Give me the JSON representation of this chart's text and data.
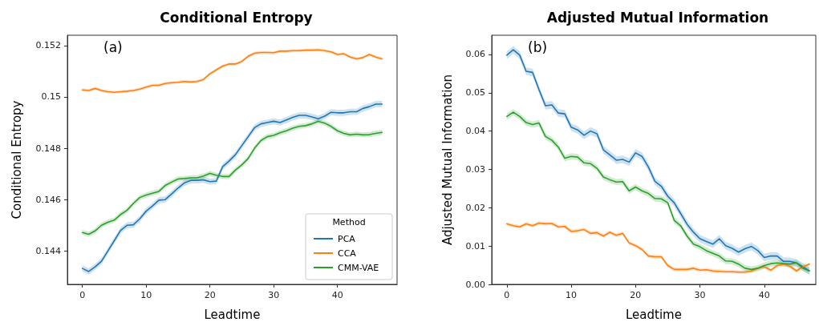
{
  "chart_data": [
    {
      "type": "line",
      "title": "Conditional Entropy",
      "xlabel": "Leadtime",
      "ylabel": "Conditional Entropy",
      "annotations": [
        "(a)"
      ],
      "x": [
        0,
        1,
        2,
        3,
        4,
        5,
        6,
        7,
        8,
        9,
        10,
        11,
        12,
        13,
        14,
        15,
        16,
        17,
        18,
        19,
        20,
        21,
        22,
        23,
        24,
        25,
        26,
        27,
        28,
        29,
        30,
        31,
        32,
        33,
        34,
        35,
        36,
        37,
        38,
        39,
        40,
        41,
        42,
        43,
        44,
        45,
        46,
        47
      ],
      "xlim": [
        -2.35,
        49.35
      ],
      "xticks": [
        0,
        10,
        20,
        30,
        40
      ],
      "ylim": [
        0.1427,
        0.1524
      ],
      "yticks": [
        0.144,
        0.146,
        0.148,
        0.15,
        0.152
      ],
      "legend": "bottom right",
      "legend_title": "Method",
      "series": [
        {
          "name": "PCA",
          "color": "#1f77b4",
          "values": [
            0.14332,
            0.1432,
            0.14338,
            0.1436,
            0.144,
            0.1444,
            0.1448,
            0.145,
            0.14502,
            0.14525,
            0.14555,
            0.14575,
            0.14598,
            0.146,
            0.14622,
            0.14645,
            0.14665,
            0.14675,
            0.14675,
            0.14677,
            0.1467,
            0.14672,
            0.14728,
            0.1475,
            0.14775,
            0.1481,
            0.14845,
            0.1488,
            0.14895,
            0.149,
            0.14905,
            0.149,
            0.1491,
            0.1492,
            0.14928,
            0.14928,
            0.14922,
            0.14915,
            0.14925,
            0.1494,
            0.14938,
            0.14938,
            0.14942,
            0.14942,
            0.14955,
            0.14962,
            0.14972,
            0.14972
          ],
          "lower": [
            0.1432,
            0.14308,
            0.14326,
            0.14348,
            0.14388,
            0.14428,
            0.14468,
            0.14488,
            0.1449,
            0.14513,
            0.14543,
            0.14563,
            0.14586,
            0.14588,
            0.1461,
            0.14633,
            0.14653,
            0.14663,
            0.14663,
            0.14665,
            0.14658,
            0.1466,
            0.14716,
            0.14738,
            0.14763,
            0.14798,
            0.14833,
            0.14868,
            0.14883,
            0.14888,
            0.14893,
            0.14888,
            0.14898,
            0.14908,
            0.14916,
            0.14916,
            0.1491,
            0.14903,
            0.14913,
            0.14928,
            0.14926,
            0.14926,
            0.1493,
            0.1493,
            0.14943,
            0.1495,
            0.1496,
            0.1496
          ],
          "upper": [
            0.14344,
            0.14332,
            0.1435,
            0.14372,
            0.14412,
            0.14452,
            0.14492,
            0.14512,
            0.14514,
            0.14537,
            0.14567,
            0.14587,
            0.1461,
            0.14612,
            0.14634,
            0.14657,
            0.14677,
            0.14687,
            0.14687,
            0.14689,
            0.14682,
            0.14684,
            0.1474,
            0.14762,
            0.14787,
            0.14822,
            0.14857,
            0.14892,
            0.14907,
            0.14912,
            0.14917,
            0.14912,
            0.14922,
            0.14932,
            0.1494,
            0.1494,
            0.14934,
            0.14927,
            0.14937,
            0.14952,
            0.1495,
            0.1495,
            0.14954,
            0.14954,
            0.14967,
            0.14974,
            0.14984,
            0.14984
          ]
        },
        {
          "name": "CCA",
          "color": "#ff7f0e",
          "values": [
            0.15027,
            0.15025,
            0.15033,
            0.15025,
            0.1502,
            0.15018,
            0.1502,
            0.15022,
            0.15025,
            0.1503,
            0.15038,
            0.15045,
            0.15045,
            0.15052,
            0.15055,
            0.15057,
            0.1506,
            0.15058,
            0.1506,
            0.15068,
            0.1509,
            0.15105,
            0.1512,
            0.15128,
            0.15128,
            0.15138,
            0.15158,
            0.1517,
            0.15173,
            0.15173,
            0.15172,
            0.15178,
            0.15178,
            0.1518,
            0.1518,
            0.15182,
            0.15182,
            0.15183,
            0.1518,
            0.15175,
            0.15165,
            0.15168,
            0.15155,
            0.15148,
            0.15153,
            0.15165,
            0.15155,
            0.15148
          ],
          "lower": [
            0.15021,
            0.15019,
            0.15027,
            0.15019,
            0.15014,
            0.15012,
            0.15014,
            0.15016,
            0.15019,
            0.15024,
            0.15032,
            0.15039,
            0.15039,
            0.15046,
            0.15049,
            0.15051,
            0.15054,
            0.15052,
            0.15054,
            0.15062,
            0.15084,
            0.15099,
            0.15114,
            0.15122,
            0.15122,
            0.15132,
            0.15152,
            0.15164,
            0.15167,
            0.15167,
            0.15166,
            0.15172,
            0.15172,
            0.15174,
            0.15174,
            0.15176,
            0.15176,
            0.15177,
            0.15174,
            0.15169,
            0.15159,
            0.15162,
            0.15149,
            0.15142,
            0.15147,
            0.15159,
            0.15149,
            0.15142
          ],
          "upper": [
            0.15033,
            0.15031,
            0.15039,
            0.15031,
            0.15026,
            0.15024,
            0.15026,
            0.15028,
            0.15031,
            0.15036,
            0.15044,
            0.15051,
            0.15051,
            0.15058,
            0.15061,
            0.15063,
            0.15066,
            0.15064,
            0.15066,
            0.15074,
            0.15096,
            0.15111,
            0.15126,
            0.15134,
            0.15134,
            0.15144,
            0.15164,
            0.15176,
            0.15179,
            0.15179,
            0.15178,
            0.15184,
            0.15184,
            0.15186,
            0.15186,
            0.15188,
            0.15188,
            0.15189,
            0.15186,
            0.15181,
            0.15171,
            0.15174,
            0.15161,
            0.15154,
            0.15159,
            0.15171,
            0.15161,
            0.15154
          ]
        },
        {
          "name": "CMM-VAE",
          "color": "#2ca02c",
          "values": [
            0.14472,
            0.14465,
            0.14478,
            0.145,
            0.14512,
            0.1452,
            0.14542,
            0.14558,
            0.14585,
            0.14608,
            0.14618,
            0.14625,
            0.14632,
            0.14655,
            0.14668,
            0.1468,
            0.14682,
            0.14685,
            0.14685,
            0.14692,
            0.14702,
            0.14695,
            0.1469,
            0.1469,
            0.14715,
            0.14735,
            0.1476,
            0.148,
            0.1483,
            0.14845,
            0.1485,
            0.1486,
            0.14868,
            0.14878,
            0.14885,
            0.14888,
            0.14895,
            0.14905,
            0.14898,
            0.14885,
            0.14868,
            0.14858,
            0.14852,
            0.14855,
            0.14852,
            0.14853,
            0.14858,
            0.14862
          ],
          "lower": [
            0.14462,
            0.14455,
            0.14468,
            0.1449,
            0.14502,
            0.1451,
            0.14532,
            0.14548,
            0.14575,
            0.14598,
            0.14608,
            0.14615,
            0.14622,
            0.14645,
            0.14658,
            0.1467,
            0.14672,
            0.14675,
            0.14675,
            0.14682,
            0.14692,
            0.14685,
            0.1468,
            0.1468,
            0.14705,
            0.14725,
            0.1475,
            0.1479,
            0.1482,
            0.14835,
            0.1484,
            0.1485,
            0.14858,
            0.14868,
            0.14875,
            0.14878,
            0.14885,
            0.14895,
            0.14888,
            0.14875,
            0.14858,
            0.14848,
            0.14842,
            0.14845,
            0.14842,
            0.14843,
            0.14848,
            0.14852
          ],
          "upper": [
            0.14482,
            0.14475,
            0.14488,
            0.1451,
            0.14522,
            0.1453,
            0.14552,
            0.14568,
            0.14595,
            0.14618,
            0.14628,
            0.14635,
            0.14642,
            0.14665,
            0.14678,
            0.1469,
            0.14692,
            0.14695,
            0.14695,
            0.14702,
            0.14712,
            0.14705,
            0.147,
            0.147,
            0.14725,
            0.14745,
            0.1477,
            0.1481,
            0.1484,
            0.14855,
            0.1486,
            0.1487,
            0.14878,
            0.14888,
            0.14895,
            0.14898,
            0.14905,
            0.14915,
            0.14908,
            0.14895,
            0.14878,
            0.14868,
            0.14862,
            0.14865,
            0.14862,
            0.14863,
            0.14868,
            0.14872
          ]
        }
      ]
    },
    {
      "type": "line",
      "title": "Adjusted Mutual Information",
      "xlabel": "Leadtime",
      "ylabel": "Adjusted Mutual Information",
      "annotations": [
        "(b)"
      ],
      "x": [
        0,
        1,
        2,
        3,
        4,
        5,
        6,
        7,
        8,
        9,
        10,
        11,
        12,
        13,
        14,
        15,
        16,
        17,
        18,
        19,
        20,
        21,
        22,
        23,
        24,
        25,
        26,
        27,
        28,
        29,
        30,
        31,
        32,
        33,
        34,
        35,
        36,
        37,
        38,
        39,
        40,
        41,
        42,
        43,
        44,
        45,
        46,
        47
      ],
      "xlim": [
        -2.35,
        48
      ],
      "xticks": [
        0,
        10,
        20,
        30,
        40
      ],
      "ylim": [
        0,
        0.065
      ],
      "yticks": [
        {
          "value": 0,
          "label": "0.00"
        },
        0.01,
        0.02,
        0.03,
        0.04,
        0.05,
        0.06
      ],
      "series": [
        {
          "color": "#1f77b4",
          "values": [
            0.0598,
            0.0612,
            0.0598,
            0.0556,
            0.0553,
            0.0508,
            0.0466,
            0.0468,
            0.0447,
            0.0445,
            0.041,
            0.0403,
            0.0389,
            0.04,
            0.0393,
            0.0351,
            0.0338,
            0.0324,
            0.0326,
            0.0319,
            0.0343,
            0.0334,
            0.0306,
            0.0269,
            0.0256,
            0.023,
            0.0213,
            0.0185,
            0.0157,
            0.0136,
            0.0119,
            0.0112,
            0.0105,
            0.0119,
            0.0101,
            0.0094,
            0.0084,
            0.0093,
            0.0099,
            0.0088,
            0.007,
            0.0074,
            0.0074,
            0.006,
            0.006,
            0.0056,
            0.0046,
            0.0035
          ],
          "lower": [
            0.0588,
            0.0602,
            0.0588,
            0.0546,
            0.0543,
            0.0498,
            0.0456,
            0.0458,
            0.0437,
            0.0435,
            0.04,
            0.0393,
            0.0379,
            0.039,
            0.0383,
            0.0341,
            0.0328,
            0.0314,
            0.0316,
            0.0309,
            0.0333,
            0.0324,
            0.0296,
            0.0259,
            0.0246,
            0.022,
            0.0203,
            0.0175,
            0.0147,
            0.0126,
            0.0109,
            0.0102,
            0.0095,
            0.0109,
            0.0091,
            0.0084,
            0.0074,
            0.0083,
            0.0089,
            0.0078,
            0.006,
            0.0064,
            0.0064,
            0.005,
            0.005,
            0.0046,
            0.0036,
            0.0025
          ],
          "upper": [
            0.0608,
            0.0622,
            0.0608,
            0.0566,
            0.0563,
            0.0518,
            0.0476,
            0.0478,
            0.0457,
            0.0455,
            0.042,
            0.0413,
            0.0399,
            0.041,
            0.0403,
            0.0361,
            0.0348,
            0.0334,
            0.0336,
            0.0329,
            0.0353,
            0.0344,
            0.0316,
            0.0279,
            0.0266,
            0.024,
            0.0223,
            0.0195,
            0.0167,
            0.0146,
            0.0129,
            0.0122,
            0.0115,
            0.0129,
            0.0111,
            0.0104,
            0.0094,
            0.0103,
            0.0109,
            0.0098,
            0.008,
            0.0084,
            0.0084,
            0.007,
            0.007,
            0.0066,
            0.0056,
            0.0045
          ]
        },
        {
          "color": "#ff7f0e",
          "values": [
            0.0158,
            0.0153,
            0.015,
            0.0158,
            0.0153,
            0.016,
            0.0158,
            0.0159,
            0.015,
            0.0151,
            0.0138,
            0.014,
            0.0143,
            0.0133,
            0.0135,
            0.0126,
            0.0136,
            0.0128,
            0.0133,
            0.0108,
            0.0101,
            0.0091,
            0.0074,
            0.0072,
            0.0072,
            0.0049,
            0.0039,
            0.0039,
            0.0039,
            0.0042,
            0.0037,
            0.0038,
            0.0035,
            0.0034,
            0.0033,
            0.0033,
            0.0032,
            0.0032,
            0.0035,
            0.0042,
            0.0046,
            0.0037,
            0.0049,
            0.0053,
            0.0047,
            0.0035,
            0.0046,
            0.0053
          ],
          "lower": [
            0.0153,
            0.0148,
            0.0145,
            0.0153,
            0.0148,
            0.0155,
            0.0153,
            0.0154,
            0.0145,
            0.0146,
            0.0133,
            0.0135,
            0.0138,
            0.0128,
            0.013,
            0.0121,
            0.0131,
            0.0123,
            0.0128,
            0.0103,
            0.0096,
            0.0086,
            0.0069,
            0.0067,
            0.0067,
            0.0044,
            0.0034,
            0.0034,
            0.0034,
            0.0037,
            0.0032,
            0.0033,
            0.003,
            0.0029,
            0.0028,
            0.0028,
            0.0027,
            0.0027,
            0.003,
            0.0037,
            0.0041,
            0.0032,
            0.0044,
            0.0048,
            0.0042,
            0.003,
            0.0041,
            0.0048
          ],
          "upper": [
            0.0163,
            0.0158,
            0.0155,
            0.0163,
            0.0158,
            0.0165,
            0.0163,
            0.0164,
            0.0155,
            0.0156,
            0.0143,
            0.0145,
            0.0148,
            0.0138,
            0.014,
            0.0131,
            0.0141,
            0.0133,
            0.0138,
            0.0113,
            0.0106,
            0.0096,
            0.0079,
            0.0077,
            0.0077,
            0.0054,
            0.0044,
            0.0044,
            0.0044,
            0.0047,
            0.0042,
            0.0043,
            0.004,
            0.0039,
            0.0038,
            0.0038,
            0.0037,
            0.0037,
            0.004,
            0.0047,
            0.0051,
            0.0042,
            0.0054,
            0.0058,
            0.0052,
            0.004,
            0.0051,
            0.0058
          ]
        },
        {
          "color": "#2ca02c",
          "values": [
            0.0438,
            0.0449,
            0.0438,
            0.0422,
            0.0417,
            0.0421,
            0.0386,
            0.0376,
            0.0358,
            0.0329,
            0.0334,
            0.0332,
            0.0317,
            0.0315,
            0.0303,
            0.028,
            0.0273,
            0.0267,
            0.0268,
            0.0244,
            0.0254,
            0.0244,
            0.0237,
            0.0224,
            0.0223,
            0.0213,
            0.0167,
            0.0153,
            0.0126,
            0.0105,
            0.0098,
            0.0088,
            0.0081,
            0.0074,
            0.0061,
            0.006,
            0.0053,
            0.0042,
            0.0039,
            0.0042,
            0.0049,
            0.0054,
            0.0056,
            0.0054,
            0.0053,
            0.0056,
            0.0042,
            0.0035
          ],
          "lower": [
            0.043,
            0.0441,
            0.043,
            0.0414,
            0.0409,
            0.0413,
            0.0378,
            0.0368,
            0.035,
            0.0321,
            0.0326,
            0.0324,
            0.0309,
            0.0307,
            0.0295,
            0.0272,
            0.0265,
            0.0259,
            0.026,
            0.0236,
            0.0246,
            0.0236,
            0.0229,
            0.0216,
            0.0215,
            0.0205,
            0.0159,
            0.0145,
            0.0118,
            0.0097,
            0.009,
            0.008,
            0.0073,
            0.0066,
            0.0053,
            0.0052,
            0.0045,
            0.0034,
            0.0031,
            0.0034,
            0.0041,
            0.0046,
            0.0048,
            0.0046,
            0.0045,
            0.0048,
            0.0034,
            0.0027
          ],
          "upper": [
            0.0446,
            0.0457,
            0.0446,
            0.043,
            0.0425,
            0.0429,
            0.0394,
            0.0384,
            0.0366,
            0.0337,
            0.0342,
            0.034,
            0.0325,
            0.0323,
            0.0311,
            0.0288,
            0.0281,
            0.0275,
            0.0276,
            0.0252,
            0.0262,
            0.0252,
            0.0245,
            0.0232,
            0.0231,
            0.0221,
            0.0175,
            0.0161,
            0.0134,
            0.0113,
            0.0106,
            0.0096,
            0.0089,
            0.0082,
            0.0069,
            0.0068,
            0.0061,
            0.005,
            0.0047,
            0.005,
            0.0057,
            0.0062,
            0.0064,
            0.0062,
            0.0061,
            0.0064,
            0.005,
            0.0043
          ]
        }
      ]
    }
  ]
}
